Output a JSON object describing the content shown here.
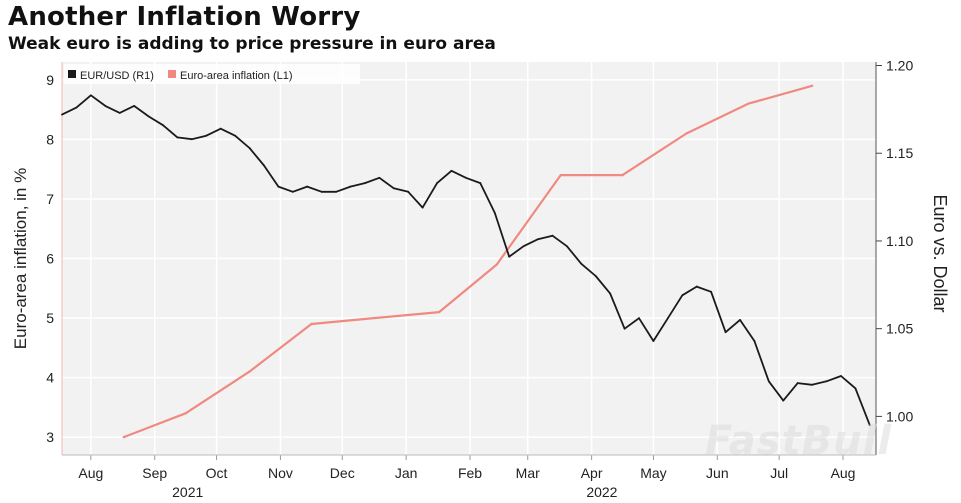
{
  "header": {
    "title": "Another Inflation Worry",
    "subtitle": "Weak euro is adding to price pressure in euro area"
  },
  "watermark": "FastBull",
  "colors": {
    "eurusd": "#1a1a1a",
    "inflation": "#f08a80",
    "plot_bg": "#f2f2f2",
    "grid": "#ffffff"
  },
  "chart_data": {
    "type": "line",
    "title": "Another Inflation Worry",
    "subtitle": "Weak euro is adding to price pressure in euro area",
    "legend": {
      "placement": "top-left",
      "entries": [
        "EUR/USD (R1)",
        "Euro-area inflation (L1)"
      ]
    },
    "grid": true,
    "x_axis": {
      "type": "date",
      "range": [
        "2021-08-01",
        "2022-08-31"
      ],
      "tick_labels": [
        "Aug",
        "Sep",
        "Oct",
        "Nov",
        "Dec",
        "Jan",
        "Feb",
        "Mar",
        "Apr",
        "May",
        "Jun",
        "Jul",
        "Aug"
      ],
      "tick_dates": [
        "2021-08-15",
        "2021-09-15",
        "2021-10-15",
        "2021-11-15",
        "2021-12-15",
        "2022-01-15",
        "2022-02-15",
        "2022-03-15",
        "2022-04-15",
        "2022-05-15",
        "2022-06-15",
        "2022-07-15",
        "2022-08-15"
      ],
      "year_labels": [
        {
          "label": "2021",
          "date": "2021-10-01"
        },
        {
          "label": "2022",
          "date": "2022-04-20"
        }
      ]
    },
    "y_left": {
      "label": "Euro-area inflation, in %",
      "range": [
        2.7,
        9.3
      ],
      "ticks": [
        3,
        4,
        5,
        6,
        7,
        8,
        9
      ]
    },
    "y_right": {
      "label": "Euro vs. Dollar",
      "range": [
        0.978,
        1.202
      ],
      "ticks": [
        1.0,
        1.05,
        1.1,
        1.15,
        1.2
      ],
      "tick_labels": [
        "1.00",
        "1.05",
        "1.10",
        "1.15",
        "1.20"
      ]
    },
    "series": [
      {
        "name": "Euro-area inflation (L1)",
        "axis": "left",
        "x": [
          "2021-08-31",
          "2021-09-30",
          "2021-10-31",
          "2021-11-30",
          "2021-12-31",
          "2022-01-31",
          "2022-02-28",
          "2022-03-31",
          "2022-04-30",
          "2022-05-31",
          "2022-06-30",
          "2022-07-31"
        ],
        "values": [
          3.0,
          3.4,
          4.1,
          4.9,
          5.0,
          5.1,
          5.9,
          7.4,
          7.4,
          8.1,
          8.6,
          8.9
        ]
      },
      {
        "name": "EUR/USD (R1)",
        "axis": "right",
        "x": [
          "2021-08-01",
          "2021-08-08",
          "2021-08-15",
          "2021-08-22",
          "2021-08-29",
          "2021-09-05",
          "2021-09-12",
          "2021-09-19",
          "2021-09-26",
          "2021-10-03",
          "2021-10-10",
          "2021-10-17",
          "2021-10-24",
          "2021-10-31",
          "2021-11-07",
          "2021-11-14",
          "2021-11-21",
          "2021-11-28",
          "2021-12-05",
          "2021-12-12",
          "2021-12-19",
          "2021-12-26",
          "2022-01-02",
          "2022-01-09",
          "2022-01-16",
          "2022-01-23",
          "2022-01-30",
          "2022-02-06",
          "2022-02-13",
          "2022-02-20",
          "2022-02-27",
          "2022-03-06",
          "2022-03-13",
          "2022-03-20",
          "2022-03-27",
          "2022-04-03",
          "2022-04-10",
          "2022-04-17",
          "2022-04-24",
          "2022-05-01",
          "2022-05-08",
          "2022-05-15",
          "2022-05-22",
          "2022-05-29",
          "2022-06-05",
          "2022-06-12",
          "2022-06-19",
          "2022-06-26",
          "2022-07-03",
          "2022-07-10",
          "2022-07-17",
          "2022-07-24",
          "2022-07-31",
          "2022-08-07",
          "2022-08-14",
          "2022-08-21",
          "2022-08-28"
        ],
        "values": [
          1.172,
          1.176,
          1.183,
          1.177,
          1.173,
          1.177,
          1.171,
          1.166,
          1.159,
          1.158,
          1.16,
          1.164,
          1.16,
          1.153,
          1.143,
          1.131,
          1.128,
          1.131,
          1.128,
          1.128,
          1.131,
          1.133,
          1.136,
          1.13,
          1.128,
          1.119,
          1.133,
          1.14,
          1.136,
          1.133,
          1.116,
          1.091,
          1.097,
          1.101,
          1.103,
          1.097,
          1.087,
          1.08,
          1.07,
          1.05,
          1.056,
          1.043,
          1.056,
          1.069,
          1.074,
          1.071,
          1.048,
          1.055,
          1.043,
          1.02,
          1.009,
          1.019,
          1.018,
          1.02,
          1.023,
          1.016,
          0.995
        ]
      }
    ]
  }
}
